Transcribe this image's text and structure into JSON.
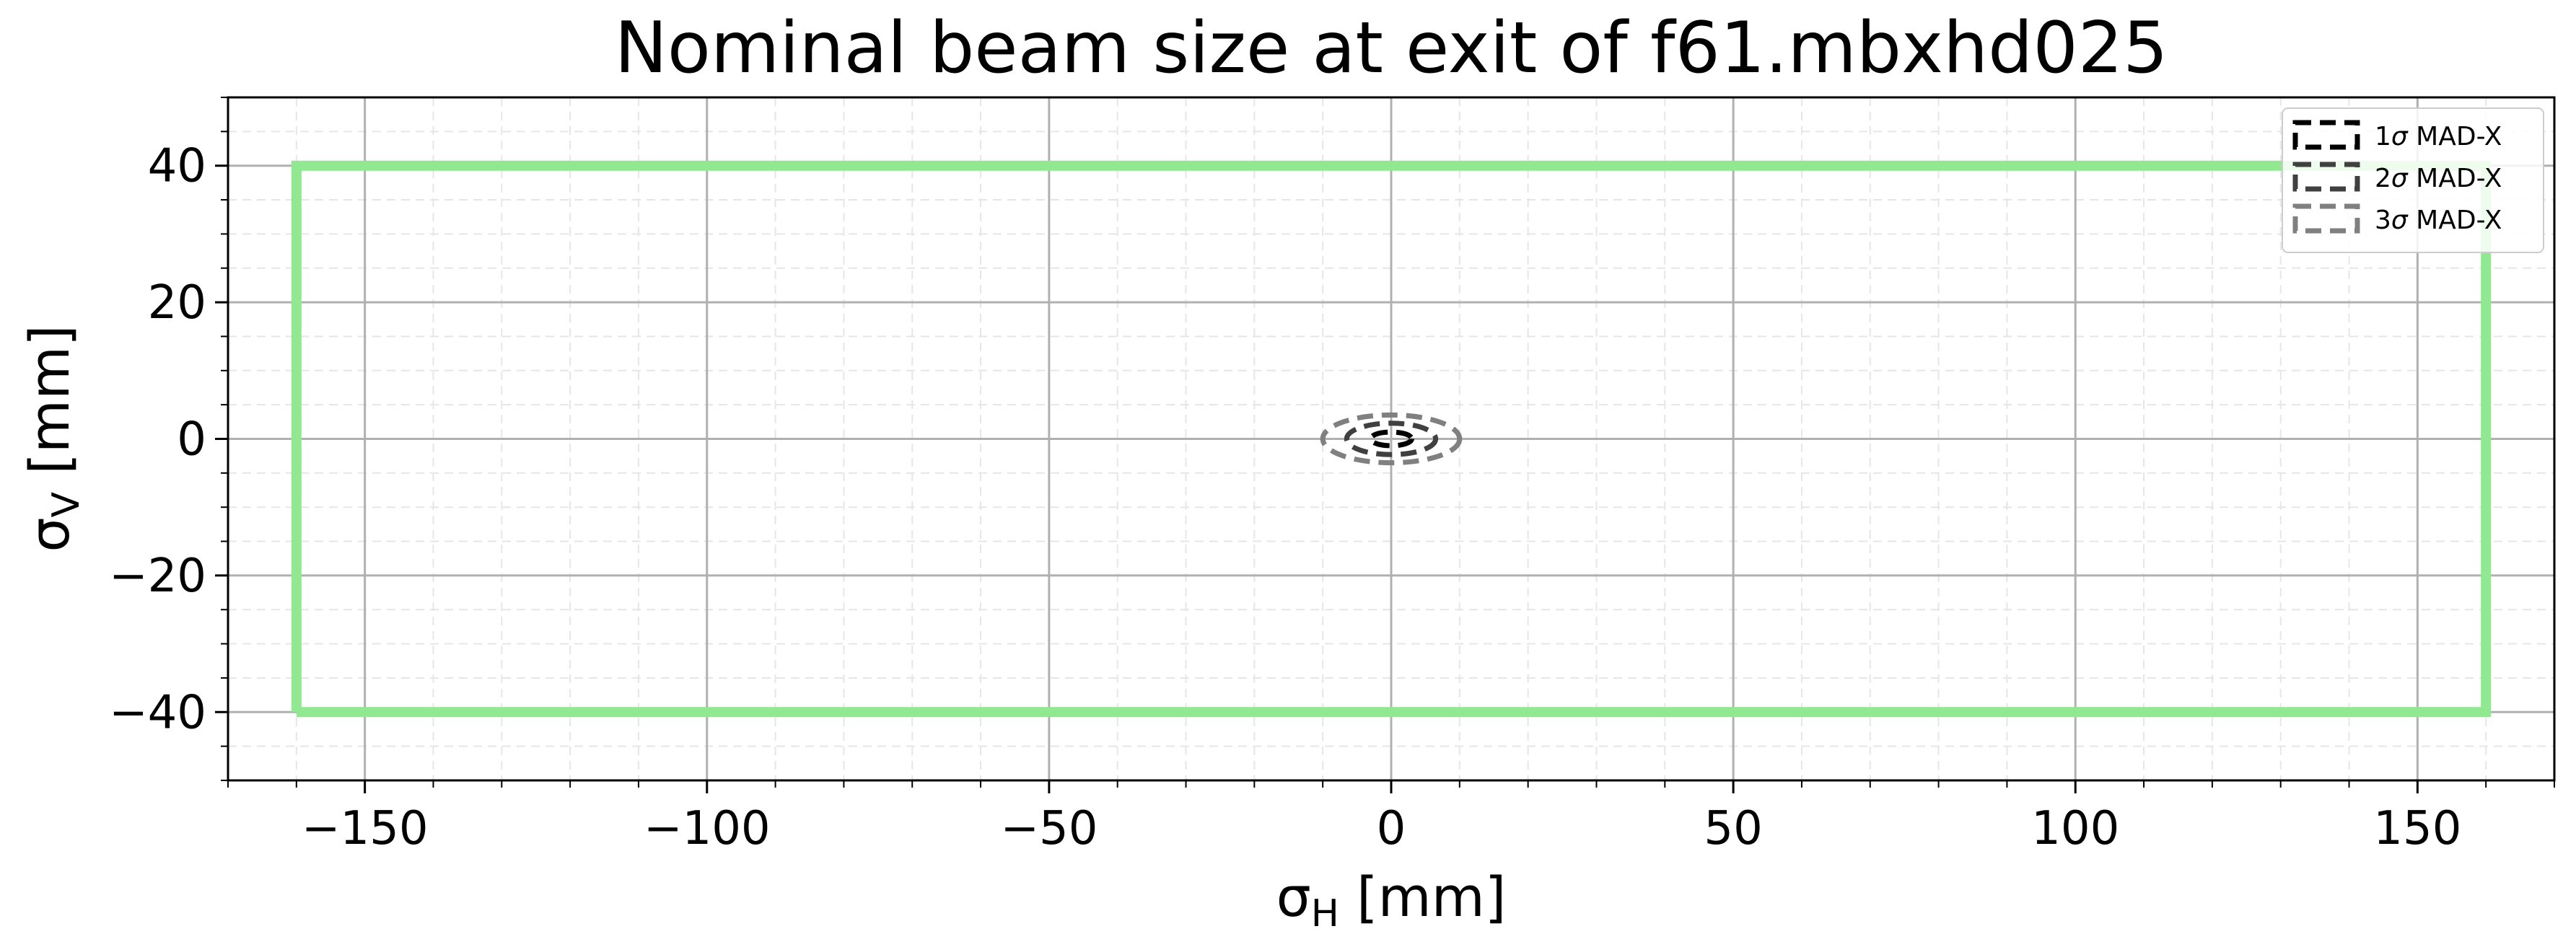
{
  "chart_data": {
    "type": "line",
    "title": "Nominal beam size at exit of f61.mbxhd025",
    "xlabel": {
      "symbol": "σ",
      "sub": "H",
      "unit": " [mm]"
    },
    "ylabel": {
      "symbol": "σ",
      "sub": "V",
      "unit": " [mm]"
    },
    "xlim": [
      -170,
      170
    ],
    "ylim": [
      -50,
      50
    ],
    "xticks": [
      -150,
      -100,
      -50,
      0,
      50,
      100,
      150
    ],
    "yticks": [
      -40,
      -20,
      0,
      20,
      40
    ],
    "grid": true,
    "legend_position": "top-right",
    "aperture": {
      "color": "#90e890",
      "x": [
        -160,
        160,
        160,
        -160,
        -160
      ],
      "y": [
        -40,
        -40,
        40,
        40,
        -40
      ]
    },
    "series": [
      {
        "name": "1σ MAD-X",
        "prefix": "1",
        "symbol": "σ",
        "suffix": " MAD-X",
        "color": "#000000",
        "center": [
          0,
          0
        ],
        "semi_axes": [
          3,
          1
        ]
      },
      {
        "name": "2σ MAD-X",
        "prefix": "2",
        "symbol": "σ",
        "suffix": " MAD-X",
        "color": "#404040",
        "center": [
          0,
          0
        ],
        "semi_axes": [
          6.5,
          2.3
        ]
      },
      {
        "name": "3σ MAD-X",
        "prefix": "3",
        "symbol": "σ",
        "suffix": " MAD-X",
        "color": "#808080",
        "center": [
          0,
          0
        ],
        "semi_axes": [
          10,
          3.5
        ]
      }
    ]
  }
}
